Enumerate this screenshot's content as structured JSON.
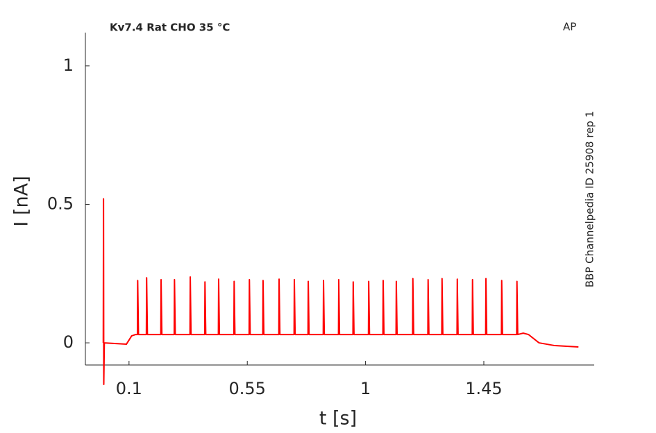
{
  "chart_data": {
    "type": "line",
    "title": "Kv7.4  Rat  CHO  35 °C",
    "annotations": [
      "AP",
      "BBP Channelpedia ID 25908 rep 1"
    ],
    "x_label": "t [s]",
    "y_label": "I [nA]",
    "color": "#ff0000",
    "x": [
      0.002,
      0.003,
      0.004,
      0.006,
      0.09,
      0.11,
      0.125,
      0.132,
      0.133,
      0.136,
      0.166,
      0.167,
      0.17,
      0.221,
      0.222,
      0.225,
      0.272,
      0.273,
      0.276,
      0.332,
      0.333,
      0.336,
      0.388,
      0.389,
      0.392,
      0.44,
      0.441,
      0.444,
      0.499,
      0.5,
      0.503,
      0.557,
      0.558,
      0.561,
      0.609,
      0.61,
      0.613,
      0.67,
      0.671,
      0.674,
      0.728,
      0.729,
      0.732,
      0.781,
      0.782,
      0.785,
      0.839,
      0.84,
      0.843,
      0.897,
      0.898,
      0.901,
      0.952,
      0.953,
      0.956,
      1.011,
      1.012,
      1.015,
      1.066,
      1.067,
      1.07,
      1.116,
      1.117,
      1.12,
      1.179,
      1.18,
      1.183,
      1.237,
      1.238,
      1.241,
      1.29,
      1.291,
      1.294,
      1.348,
      1.349,
      1.352,
      1.406,
      1.407,
      1.41,
      1.457,
      1.458,
      1.461,
      1.517,
      1.518,
      1.521,
      1.575,
      1.576,
      1.579,
      1.6,
      1.62,
      1.66,
      1.72,
      1.81
    ],
    "values": [
      0,
      0.52,
      -0.15,
      0,
      -0.005,
      0.025,
      0.03,
      0.03,
      0.225,
      0.03,
      0.03,
      0.235,
      0.03,
      0.03,
      0.228,
      0.03,
      0.03,
      0.228,
      0.03,
      0.03,
      0.238,
      0.03,
      0.03,
      0.22,
      0.03,
      0.03,
      0.23,
      0.03,
      0.03,
      0.222,
      0.03,
      0.03,
      0.228,
      0.03,
      0.03,
      0.225,
      0.03,
      0.03,
      0.23,
      0.03,
      0.03,
      0.228,
      0.03,
      0.03,
      0.222,
      0.03,
      0.03,
      0.225,
      0.03,
      0.03,
      0.228,
      0.03,
      0.03,
      0.22,
      0.03,
      0.03,
      0.222,
      0.03,
      0.03,
      0.225,
      0.03,
      0.03,
      0.222,
      0.03,
      0.03,
      0.232,
      0.03,
      0.03,
      0.228,
      0.03,
      0.03,
      0.232,
      0.03,
      0.03,
      0.23,
      0.03,
      0.03,
      0.228,
      0.03,
      0.03,
      0.232,
      0.03,
      0.03,
      0.225,
      0.03,
      0.03,
      0.222,
      0.03,
      0.035,
      0.03,
      0,
      -0.01,
      -0.015
    ],
    "xlim": [
      -0.066,
      1.87
    ],
    "xticks": [
      0.1,
      0.55,
      1,
      1.45
    ],
    "ylim": [
      -0.08,
      1.12
    ],
    "yticks": [
      0,
      0.5,
      1
    ]
  }
}
